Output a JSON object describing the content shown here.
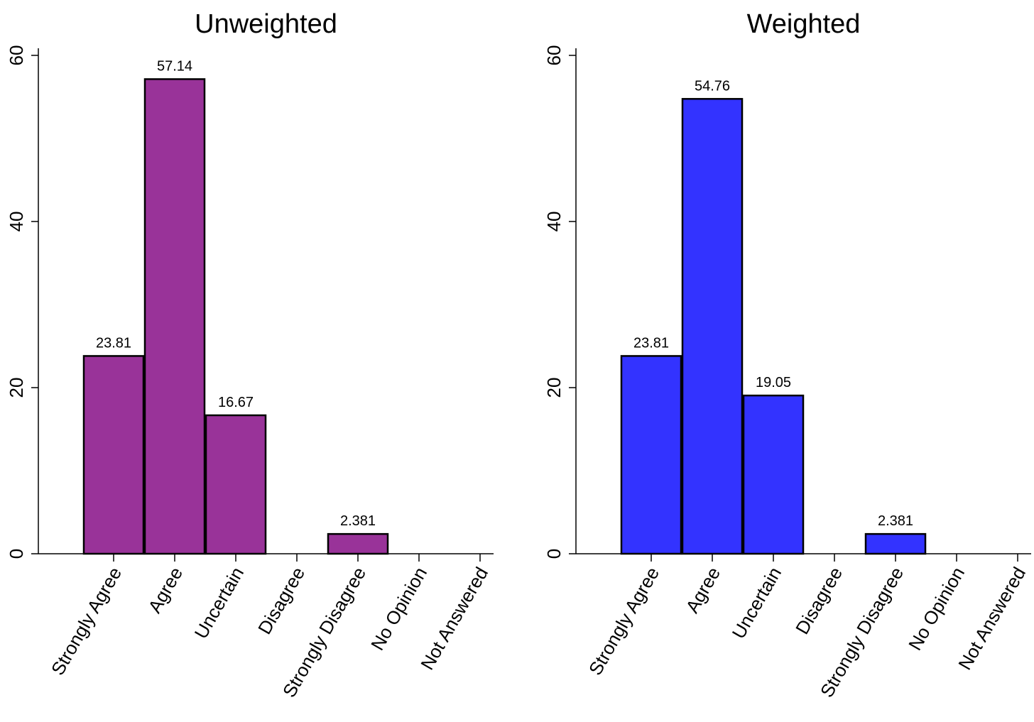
{
  "chart_data": [
    {
      "type": "bar",
      "title": "Unweighted",
      "xlabel": "",
      "ylabel": "",
      "categories": [
        "Strongly Agree",
        "Agree",
        "Uncertain",
        "Disagree",
        "Strongly Disagree",
        "No Opinion",
        "Not Answered"
      ],
      "values": [
        23.81,
        57.14,
        16.67,
        0,
        2.381,
        0,
        0
      ],
      "value_labels": [
        "23.81",
        "57.14",
        "16.67",
        "",
        "2.381",
        "",
        ""
      ],
      "ylim": [
        0,
        60
      ],
      "yticks": [
        0,
        20,
        40,
        60
      ],
      "ytick_labels": [
        "0",
        "20",
        "40",
        "60"
      ],
      "bar_color": "#993399",
      "grid": false,
      "legend": "none"
    },
    {
      "type": "bar",
      "title": "Weighted",
      "xlabel": "",
      "ylabel": "",
      "categories": [
        "Strongly Agree",
        "Agree",
        "Uncertain",
        "Disagree",
        "Strongly Disagree",
        "No Opinion",
        "Not Answered"
      ],
      "values": [
        23.81,
        54.76,
        19.05,
        0,
        2.381,
        0,
        0
      ],
      "value_labels": [
        "23.81",
        "54.76",
        "19.05",
        "",
        "2.381",
        "",
        ""
      ],
      "ylim": [
        0,
        60
      ],
      "yticks": [
        0,
        20,
        40,
        60
      ],
      "ytick_labels": [
        "0",
        "20",
        "40",
        "60"
      ],
      "bar_color": "#3333ff",
      "grid": false,
      "legend": "none"
    }
  ]
}
